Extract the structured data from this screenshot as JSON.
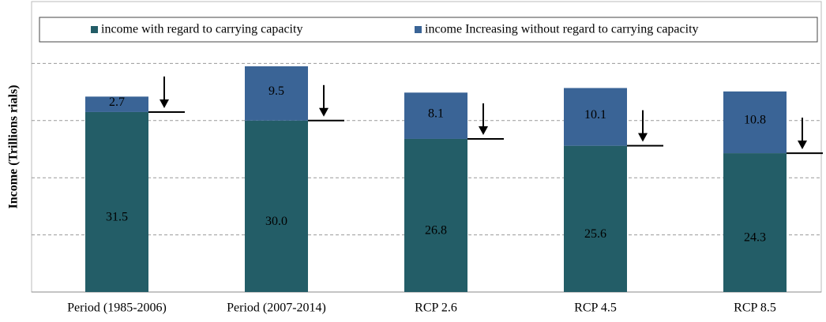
{
  "chart_data": {
    "type": "stacked_bar",
    "y_label": "Income (Trillions rials)",
    "categories": [
      "Period (1985-2006)",
      "Period (2007-2014)",
      "RCP 2.6",
      "RCP 4.5",
      "RCP 8.5"
    ],
    "series": [
      {
        "name": "income with regard to carrying capacity",
        "color": "#235d67",
        "values": [
          31.5,
          30.0,
          26.8,
          25.6,
          24.3
        ],
        "value_labels": [
          "31.5",
          "30.0",
          "26.8",
          "25.6",
          "24.3"
        ]
      },
      {
        "name": "income Increasing without regard to carrying capacity",
        "color": "#3a6496",
        "values": [
          2.7,
          9.5,
          8.1,
          10.1,
          10.8
        ]
      }
    ],
    "ylim": [
      0,
      50
    ],
    "yticks": [
      10,
      20,
      30,
      40
    ],
    "grid": true
  }
}
